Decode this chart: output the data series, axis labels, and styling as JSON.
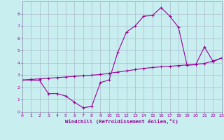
{
  "xlabel": "Windchill (Refroidissement éolien,°C)",
  "bg_color": "#c8eef0",
  "grid_color": "#aabbcc",
  "line_color": "#990099",
  "x_values": [
    0,
    1,
    2,
    3,
    4,
    5,
    6,
    7,
    8,
    9,
    10,
    11,
    12,
    13,
    14,
    15,
    16,
    17,
    18,
    19,
    20,
    21,
    22,
    23
  ],
  "curve1_y": [
    2.6,
    2.6,
    2.55,
    1.5,
    1.5,
    1.3,
    0.8,
    0.35,
    0.45,
    2.4,
    2.6,
    4.85,
    6.5,
    7.0,
    7.8,
    7.85,
    8.5,
    7.8,
    6.9,
    3.8,
    3.85,
    5.3,
    4.1,
    4.4
  ],
  "curve2_y": [
    2.6,
    2.65,
    2.7,
    2.75,
    2.8,
    2.85,
    2.9,
    2.95,
    3.0,
    3.05,
    3.15,
    3.25,
    3.35,
    3.45,
    3.55,
    3.62,
    3.68,
    3.72,
    3.78,
    3.83,
    3.88,
    3.95,
    4.15,
    4.4
  ],
  "xlim": [
    0,
    23
  ],
  "ylim": [
    0,
    9
  ],
  "yticks": [
    0,
    1,
    2,
    3,
    4,
    5,
    6,
    7,
    8
  ],
  "xticks": [
    0,
    1,
    2,
    3,
    4,
    5,
    6,
    7,
    8,
    9,
    10,
    11,
    12,
    13,
    14,
    15,
    16,
    17,
    18,
    19,
    20,
    21,
    22,
    23
  ],
  "markersize": 2.5,
  "linewidth": 0.8
}
